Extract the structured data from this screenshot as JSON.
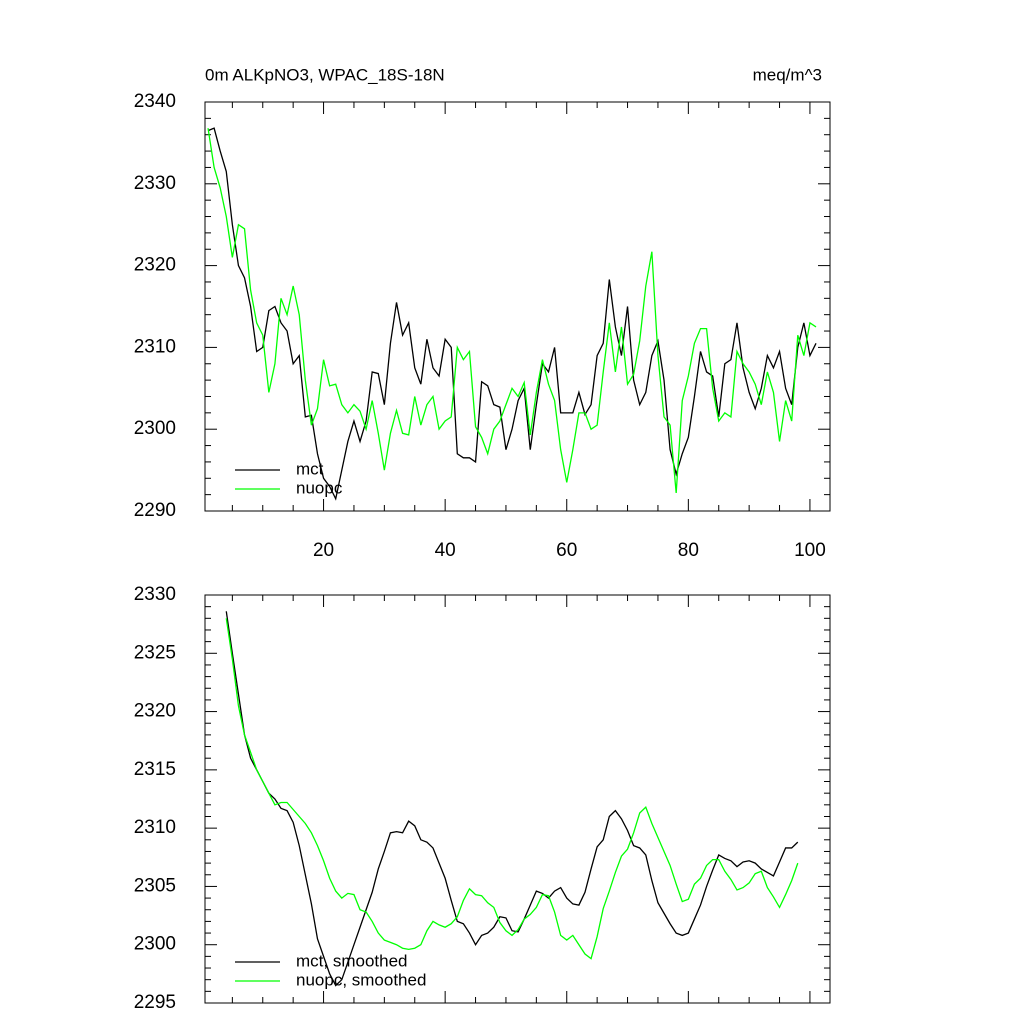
{
  "chart_data": [
    {
      "type": "line",
      "title": "0m ALKpNO3, WPAC_18S-18N",
      "subtitle": "meq/m^3",
      "x": [
        1,
        2,
        3,
        4,
        5,
        6,
        7,
        8,
        9,
        10,
        11,
        12,
        13,
        14,
        15,
        16,
        17,
        18,
        19,
        20,
        21,
        22,
        23,
        24,
        25,
        26,
        27,
        28,
        29,
        30,
        31,
        32,
        33,
        34,
        35,
        36,
        37,
        38,
        39,
        40,
        41,
        42,
        43,
        44,
        45,
        46,
        47,
        48,
        49,
        50,
        51,
        52,
        53,
        54,
        55,
        56,
        57,
        58,
        59,
        60,
        61,
        62,
        63,
        64,
        65,
        66,
        67,
        68,
        69,
        70,
        71,
        72,
        73,
        74,
        75,
        76,
        77,
        78,
        79,
        80,
        81,
        82,
        83,
        84,
        85,
        86,
        87,
        88,
        89,
        90,
        91,
        92,
        93,
        94,
        95,
        96,
        97,
        98,
        99,
        100,
        101
      ],
      "series": [
        {
          "name": "mct",
          "color": "#000000",
          "values": [
            2336.5,
            2336.8,
            2334,
            2331.5,
            2325,
            2320,
            2318.5,
            2315,
            2309.5,
            2310,
            2314.5,
            2315,
            2313,
            2312,
            2308,
            2309,
            2301.5,
            2301.7,
            2297,
            2294,
            2293,
            2291.5,
            2295,
            2298.5,
            2301,
            2298.5,
            2301,
            2307,
            2306.8,
            2303,
            2310.5,
            2315.5,
            2311.5,
            2313,
            2307.5,
            2305.5,
            2311,
            2307.5,
            2306.5,
            2311,
            2310,
            2297,
            2296.5,
            2296.5,
            2296,
            2305.8,
            2305.3,
            2303,
            2302.7,
            2297.5,
            2300,
            2303.5,
            2305,
            2297.5,
            2303,
            2308,
            2307,
            2310,
            2302,
            2302,
            2302,
            2304.5,
            2301.8,
            2303,
            2309,
            2310.5,
            2318.3,
            2312.5,
            2309,
            2315,
            2306,
            2303,
            2304.5,
            2309,
            2310.8,
            2306,
            2297.5,
            2294.5,
            2297,
            2299,
            2304,
            2309.5,
            2307,
            2306.5,
            2301.5,
            2308,
            2308.5,
            2313,
            2307.5,
            2304.5,
            2302.5,
            2305,
            2309,
            2307.5,
            2309.5,
            2305,
            2303,
            2310,
            2313,
            2309,
            2310.5
          ]
        },
        {
          "name": "nuopc",
          "color": "#00ff00",
          "values": [
            2336.8,
            2332,
            2329.5,
            2326,
            2321,
            2325,
            2324.5,
            2317,
            2313,
            2311.5,
            2304.5,
            2308,
            2316,
            2314,
            2317.5,
            2314,
            2306,
            2300.5,
            2302.5,
            2308.5,
            2305.3,
            2305.5,
            2303,
            2302,
            2303,
            2302.2,
            2300,
            2303.5,
            2299.5,
            2295,
            2299.5,
            2302.3,
            2299.5,
            2299.3,
            2304,
            2300.5,
            2303,
            2304,
            2300,
            2301,
            2301.5,
            2310,
            2308.5,
            2309.5,
            2300.3,
            2299,
            2297,
            2300,
            2301,
            2303,
            2305,
            2304,
            2305.7,
            2299.3,
            2304.5,
            2308.5,
            2305.5,
            2303.5,
            2297.5,
            2293.5,
            2297.5,
            2302,
            2302,
            2300,
            2300.5,
            2307,
            2313,
            2307,
            2312.5,
            2305.5,
            2306.7,
            2310.8,
            2317.5,
            2321.7,
            2309,
            2301.5,
            2300.5,
            2292.2,
            2303.5,
            2306.5,
            2310.5,
            2312.3,
            2312.3,
            2305,
            2301,
            2302,
            2301.5,
            2309.5,
            2308,
            2307,
            2305.5,
            2303,
            2307,
            2304.5,
            2298.5,
            2303.5,
            2301,
            2311.5,
            2309,
            2313,
            2312.5
          ]
        }
      ],
      "xlim": [
        0.5,
        103.3
      ],
      "xticks": [
        20,
        40,
        60,
        80,
        100
      ],
      "show_xtick_labels": true,
      "ylim": [
        2290,
        2340
      ],
      "yticks": [
        2290,
        2300,
        2310,
        2320,
        2330,
        2340
      ]
    },
    {
      "type": "line",
      "x": [
        4,
        5,
        6,
        7,
        8,
        9,
        10,
        11,
        12,
        13,
        14,
        15,
        16,
        17,
        18,
        19,
        20,
        21,
        22,
        23,
        24,
        25,
        26,
        27,
        28,
        29,
        30,
        31,
        32,
        33,
        34,
        35,
        36,
        37,
        38,
        39,
        40,
        41,
        42,
        43,
        44,
        45,
        46,
        47,
        48,
        49,
        50,
        51,
        52,
        53,
        54,
        55,
        56,
        57,
        58,
        59,
        60,
        61,
        62,
        63,
        64,
        65,
        66,
        67,
        68,
        69,
        70,
        71,
        72,
        73,
        74,
        75,
        76,
        77,
        78,
        79,
        80,
        81,
        82,
        83,
        84,
        85,
        86,
        87,
        88,
        89,
        90,
        91,
        92,
        93,
        94,
        95,
        96,
        97,
        98
      ],
      "series": [
        {
          "name": "mct, smoothed",
          "color": "#000000",
          "values": [
            2328.6,
            2325,
            2321.5,
            2318,
            2316,
            2315,
            2314,
            2313,
            2312.5,
            2311.7,
            2311.5,
            2310.5,
            2308.5,
            2306,
            2303.5,
            2300.5,
            2299,
            2297.5,
            2296.5,
            2297,
            2298.5,
            2300,
            2301.5,
            2303,
            2304.5,
            2306.5,
            2308,
            2309.6,
            2309.7,
            2309.6,
            2310.6,
            2310.2,
            2309,
            2308.8,
            2308.3,
            2307,
            2305.7,
            2303.8,
            2302,
            2301.8,
            2301,
            2300,
            2300.8,
            2301,
            2301.5,
            2302.4,
            2302.3,
            2301.2,
            2301.1,
            2302.2,
            2303.4,
            2304.6,
            2304.4,
            2304,
            2304.6,
            2304.9,
            2304,
            2303.5,
            2303.4,
            2304.5,
            2306.5,
            2308.4,
            2309,
            2311,
            2311.5,
            2310.8,
            2309.8,
            2308.5,
            2308.3,
            2307.7,
            2305.5,
            2303.6,
            2302.7,
            2301.8,
            2301,
            2300.8,
            2301,
            2302.2,
            2303.4,
            2305,
            2306.4,
            2307.7,
            2307.4,
            2307.2,
            2306.7,
            2307.1,
            2307.2,
            2307,
            2306.5,
            2306.2,
            2305.9,
            2307.1,
            2308.3,
            2308.3,
            2308.8
          ]
        },
        {
          "name": "nuopc, smoothed",
          "color": "#00ff00",
          "values": [
            2328,
            2324.5,
            2320.5,
            2318,
            2316.5,
            2315,
            2314,
            2313,
            2312,
            2312.2,
            2312.2,
            2311.6,
            2311,
            2310.4,
            2309.6,
            2308.5,
            2307.2,
            2305.7,
            2304.6,
            2304,
            2304.4,
            2304.3,
            2303,
            2302.8,
            2302,
            2301,
            2300.4,
            2300.2,
            2300,
            2299.7,
            2299.6,
            2299.7,
            2300,
            2301.2,
            2302,
            2301.7,
            2301.5,
            2301.8,
            2302.4,
            2303.8,
            2304.8,
            2304.3,
            2304.2,
            2303.6,
            2303.2,
            2301.9,
            2301.2,
            2300.8,
            2301.3,
            2302.2,
            2302.6,
            2303.2,
            2304.3,
            2304.2,
            2302.8,
            2300.8,
            2300.4,
            2300.8,
            2300,
            2299.2,
            2298.8,
            2300.7,
            2303.1,
            2304.6,
            2306.2,
            2307.6,
            2308.2,
            2309.6,
            2311.3,
            2311.8,
            2310.4,
            2309.2,
            2308,
            2306.8,
            2305.2,
            2303.7,
            2303.9,
            2305.2,
            2305.7,
            2306.8,
            2307.3,
            2307.3,
            2306.3,
            2305.6,
            2304.7,
            2304.9,
            2305.3,
            2306.1,
            2306.3,
            2304.9,
            2304.1,
            2303.2,
            2304.3,
            2305.5,
            2307
          ]
        }
      ],
      "xlim": [
        0.5,
        103.3
      ],
      "xticks": [
        20,
        40,
        60,
        80,
        100
      ],
      "show_xtick_labels": false,
      "ylim": [
        2295,
        2330
      ],
      "yticks": [
        2295,
        2300,
        2305,
        2310,
        2315,
        2320,
        2325,
        2330
      ]
    }
  ]
}
